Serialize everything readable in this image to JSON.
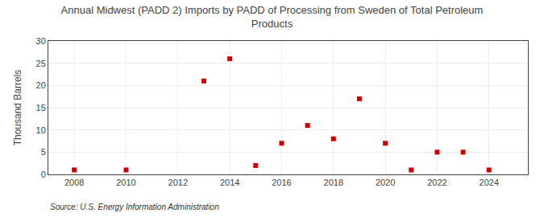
{
  "chart_data": {
    "type": "scatter",
    "title": "Annual Midwest (PADD 2) Imports by PADD of Processing from Sweden of Total Petroleum\nProducts",
    "y_label": "Thousand Barrels",
    "source": "Source: U.S. Energy Information Administration",
    "x": [
      2008,
      2010,
      2013,
      2014,
      2015,
      2016,
      2017,
      2018,
      2019,
      2020,
      2021,
      2022,
      2023,
      2024
    ],
    "values": [
      1,
      1,
      21,
      26,
      2,
      7,
      11,
      8,
      17,
      7,
      1,
      5,
      5,
      1
    ],
    "color": "#cc0000",
    "marker": "square",
    "xlim": [
      2007,
      2025.5
    ],
    "ylim": [
      0,
      30
    ],
    "xticks": [
      2008,
      2010,
      2012,
      2014,
      2016,
      2018,
      2020,
      2022,
      2024
    ],
    "yticks": [
      0,
      5,
      10,
      15,
      20,
      25,
      30
    ],
    "grid": true
  }
}
